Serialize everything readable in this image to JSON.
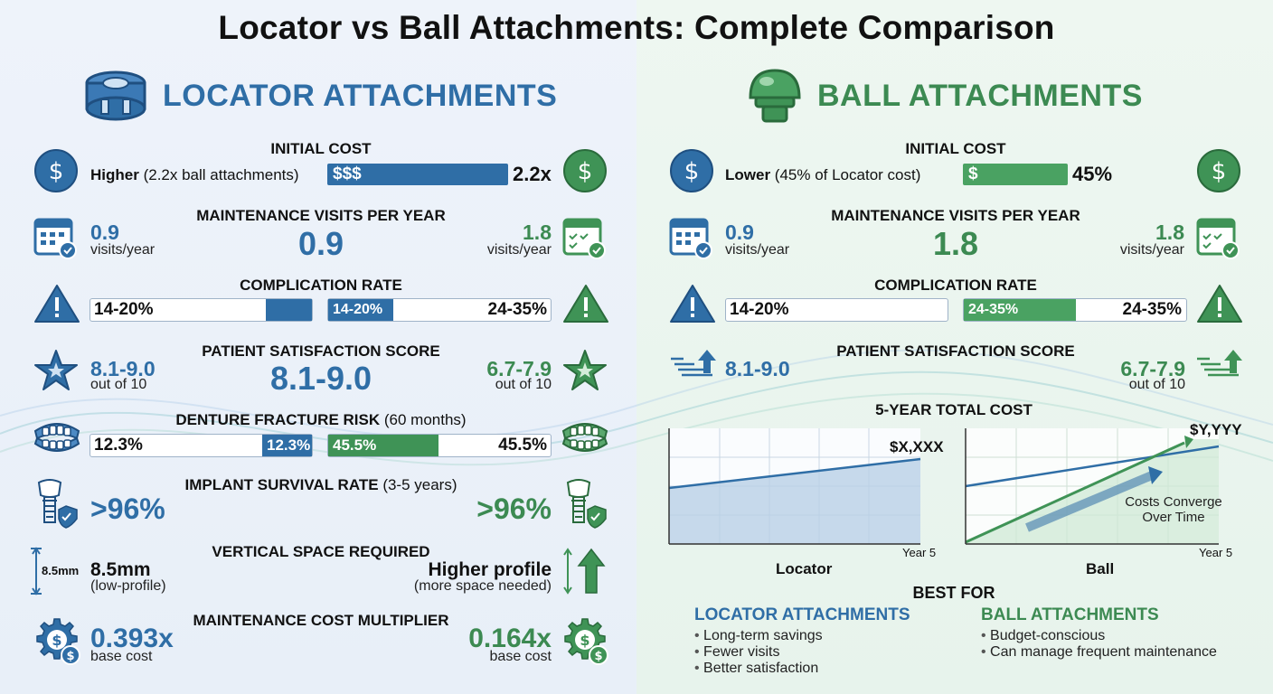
{
  "title": "Locator vs Ball Attachments: Complete Comparison",
  "locator": {
    "header": "LOCATOR ATTACHMENTS",
    "initial_cost": {
      "heading": "INITIAL COST",
      "desc_bold": "Higher",
      "desc_rest": "(2.2x ball attachments)",
      "bar_label": "$$$",
      "value": "2.2x"
    },
    "maintenance": {
      "heading": "MAINTENANCE VISITS PER YEAR",
      "left_value": "0.9",
      "left_unit": "visits/year",
      "center_value": "0.9",
      "right_value": "1.8",
      "right_unit": "visits/year"
    },
    "complication": {
      "heading": "COMPLICATION RATE",
      "left_value": "14-20%",
      "bar_value": "14-20%",
      "right_value": "24-35%"
    },
    "satisfaction": {
      "heading": "PATIENT SATISFACTION SCORE",
      "left_value": "8.1-9.0",
      "left_unit": "out of 10",
      "center_value": "8.1-9.0",
      "right_value": "6.7-7.9",
      "right_unit": "out of 10"
    },
    "fracture": {
      "heading": "DENTURE FRACTURE RISK",
      "heading_sub": "(60 months)",
      "left_value": "12.3%",
      "left_bar_value": "12.3%",
      "right_bar_value": "45.5%",
      "right_value": "45.5%"
    },
    "survival": {
      "heading": "IMPLANT SURVIVAL RATE",
      "heading_sub": "(3-5 years)",
      "left_value": ">96%",
      "right_value": ">96%"
    },
    "vertical": {
      "heading": "VERTICAL SPACE REQUIRED",
      "dim_label": "8.5mm",
      "left_value": "8.5mm",
      "left_unit": "(low-profile)",
      "right_value": "Higher profile",
      "right_unit": "(more space needed)"
    },
    "multiplier": {
      "heading": "MAINTENANCE COST MULTIPLIER",
      "left_value": "0.393x",
      "left_unit": "base cost",
      "right_value": "0.164x",
      "right_unit": "base cost"
    }
  },
  "ball": {
    "header": "BALL ATTACHMENTS",
    "initial_cost": {
      "heading": "INITIAL COST",
      "desc_bold": "Lower",
      "desc_rest": "(45% of Locator cost)",
      "bar_label": "$",
      "value": "45%"
    },
    "maintenance": {
      "heading": "MAINTENANCE VISITS PER YEAR",
      "left_value": "0.9",
      "left_unit": "visits/year",
      "center_value": "1.8",
      "right_value": "1.8",
      "right_unit": "visits/year"
    },
    "complication": {
      "heading": "COMPLICATION RATE",
      "left_value": "14-20%",
      "bar_value": "24-35%",
      "right_value": "24-35%"
    },
    "satisfaction": {
      "heading": "PATIENT SATISFACTION SCORE",
      "left_value": "8.1-9.0",
      "right_value": "6.7-7.9",
      "right_unit": "out of 10"
    },
    "total_cost": {
      "heading": "5-YEAR TOTAL COST",
      "locator_chart": {
        "value_label": "$X,XXX",
        "x_label": "Year 5",
        "caption": "Locator"
      },
      "ball_chart": {
        "value_label": "$Y,YYY",
        "x_label": "Year 5",
        "caption": "Ball",
        "annotation_line1": "Costs Converge",
        "annotation_line2": "Over Time"
      }
    },
    "best_for": {
      "heading": "BEST FOR",
      "locator_title": "LOCATOR ATTACHMENTS",
      "locator_items": [
        "Long-term savings",
        "Fewer visits",
        "Better satisfaction"
      ],
      "ball_title": "BALL ATTACHMENTS",
      "ball_items": [
        "Budget-conscious",
        "Can manage frequent maintenance"
      ]
    }
  },
  "colors": {
    "blue": "#2f6ea6",
    "green": "#3f9356",
    "light_blue": "#e8eff8",
    "light_green": "#e7f3ec"
  }
}
